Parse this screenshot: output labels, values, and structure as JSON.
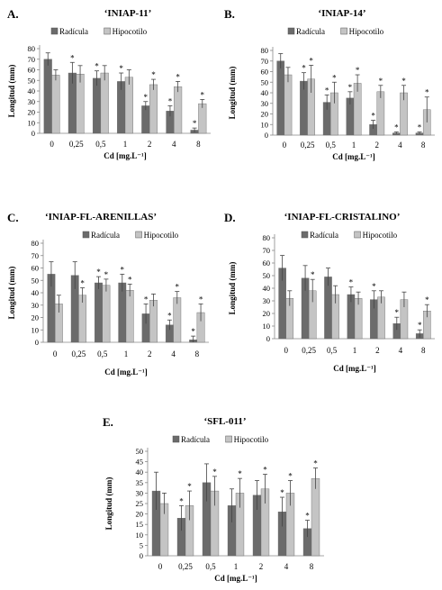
{
  "colors": {
    "radicula": "#6b6b6b",
    "hipocotilo": "#c4c4c4",
    "axis": "#888888",
    "text": "#000000"
  },
  "chart_data": [
    {
      "type": "bar",
      "panel_label": "A.",
      "title": "‘INIAP-11’",
      "xlabel": "Cd [mg.L⁻¹]",
      "ylabel": "Longitud (mm)",
      "ylim": [
        0,
        80
      ],
      "yticks": [
        "0",
        "10",
        "20",
        "30",
        "40",
        "50",
        "60",
        "70",
        "80"
      ],
      "categories": [
        "0",
        "0,25",
        "0,5",
        "1",
        "2",
        "4",
        "8"
      ],
      "series": [
        {
          "name": "Radícula",
          "values": [
            70,
            57,
            52,
            49,
            26,
            21,
            3
          ],
          "errors": [
            6,
            10,
            7,
            8,
            4,
            5,
            2
          ],
          "sig": [
            false,
            true,
            true,
            true,
            true,
            true,
            true
          ]
        },
        {
          "name": "Hipocotilo",
          "values": [
            55,
            56,
            57,
            53,
            46,
            44,
            28
          ],
          "errors": [
            5,
            8,
            7,
            7,
            5,
            5,
            4
          ],
          "sig": [
            false,
            false,
            false,
            false,
            true,
            true,
            true
          ]
        }
      ]
    },
    {
      "type": "bar",
      "panel_label": "B.",
      "title": "‘INIAP-14’",
      "xlabel": "Cd [mg.L⁻¹]",
      "ylabel": "Longitud (mm)",
      "ylim": [
        0,
        80
      ],
      "yticks": [
        "0",
        "10",
        "20",
        "30",
        "40",
        "50",
        "60",
        "70",
        "80"
      ],
      "categories": [
        "0",
        "0,25",
        "0,5",
        "1",
        "2",
        "4",
        "8"
      ],
      "series": [
        {
          "name": "Radícula",
          "values": [
            70,
            51,
            31,
            35,
            10,
            2,
            2
          ],
          "errors": [
            7,
            8,
            7,
            6,
            4,
            1,
            1
          ],
          "sig": [
            false,
            true,
            true,
            true,
            true,
            true,
            true
          ]
        },
        {
          "name": "Hipocotilo",
          "values": [
            57,
            53,
            40,
            49,
            41,
            40,
            24
          ],
          "errors": [
            7,
            13,
            10,
            8,
            6,
            7,
            12
          ],
          "sig": [
            false,
            true,
            true,
            true,
            true,
            true,
            true
          ]
        }
      ]
    },
    {
      "type": "bar",
      "panel_label": "C.",
      "title": "‘INIAP-FL-ARENILLAS’",
      "xlabel": "Cd [mg.L⁻¹]",
      "ylabel": "Longitud (mm)",
      "ylim": [
        0,
        80
      ],
      "yticks": [
        "0",
        "10",
        "20",
        "30",
        "40",
        "50",
        "60",
        "70",
        "80"
      ],
      "categories": [
        "0",
        "0,25",
        "0,5",
        "1",
        "2",
        "4",
        "8"
      ],
      "series": [
        {
          "name": "Radícula",
          "values": [
            55,
            54,
            48,
            48,
            23,
            14,
            2
          ],
          "errors": [
            10,
            11,
            5,
            7,
            8,
            4,
            3
          ],
          "sig": [
            false,
            false,
            true,
            true,
            true,
            true,
            true
          ]
        },
        {
          "name": "Hipocotilo",
          "values": [
            31,
            38,
            46,
            42,
            34,
            36,
            24
          ],
          "errors": [
            7,
            6,
            5,
            5,
            5,
            5,
            7
          ],
          "sig": [
            false,
            true,
            true,
            true,
            false,
            true,
            true
          ]
        }
      ]
    },
    {
      "type": "bar",
      "panel_label": "D.",
      "title": "‘INIAP-FL-CRISTALINO’",
      "xlabel": "Cd [mg.L⁻¹]",
      "ylabel": "Longitud (mm)",
      "ylim": [
        0,
        80
      ],
      "yticks": [
        "0",
        "10",
        "20",
        "30",
        "40",
        "50",
        "60",
        "70",
        "80"
      ],
      "categories": [
        "0",
        "0,25",
        "0,5",
        "1",
        "2",
        "4",
        "8"
      ],
      "series": [
        {
          "name": "Radícula",
          "values": [
            56,
            48,
            49,
            35,
            31,
            12,
            4
          ],
          "errors": [
            10,
            10,
            7,
            6,
            7,
            5,
            3
          ],
          "sig": [
            false,
            false,
            false,
            true,
            true,
            true,
            true
          ]
        },
        {
          "name": "Hipocotilo",
          "values": [
            32,
            38,
            35,
            32,
            33,
            31,
            22
          ],
          "errors": [
            6,
            9,
            7,
            5,
            5,
            6,
            5
          ],
          "sig": [
            false,
            true,
            false,
            false,
            false,
            false,
            true
          ]
        }
      ]
    },
    {
      "type": "bar",
      "panel_label": "E.",
      "title": "‘SFL-011’",
      "xlabel": "Cd [mg.L⁻¹]",
      "ylabel": "Longitud (mm)",
      "ylim": [
        0,
        50
      ],
      "yticks": [
        "0",
        "5",
        "10",
        "15",
        "20",
        "25",
        "30",
        "35",
        "40",
        "45",
        "50"
      ],
      "categories": [
        "0",
        "0,25",
        "0,5",
        "1",
        "2",
        "4",
        "8"
      ],
      "series": [
        {
          "name": "Radícula",
          "values": [
            31,
            18,
            35,
            24,
            29,
            21,
            13
          ],
          "errors": [
            9,
            6,
            9,
            8,
            7,
            7,
            4
          ],
          "sig": [
            false,
            true,
            false,
            false,
            false,
            true,
            true
          ]
        },
        {
          "name": "Hipocotilo",
          "values": [
            25,
            24,
            31,
            30,
            32,
            30,
            37
          ],
          "errors": [
            5,
            7,
            7,
            7,
            7,
            6,
            5
          ],
          "sig": [
            false,
            true,
            true,
            true,
            true,
            true,
            true
          ]
        }
      ]
    }
  ]
}
